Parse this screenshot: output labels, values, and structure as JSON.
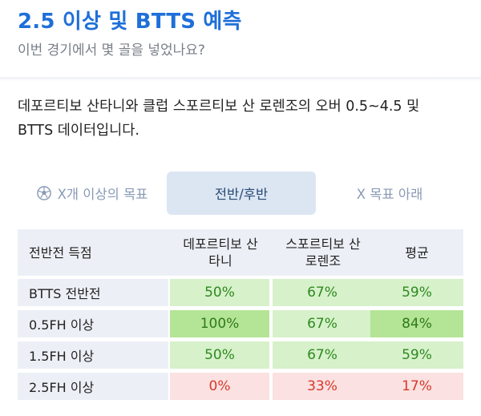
{
  "header": {
    "title": "2.5 이상 및 BTTS 예측",
    "subtitle": "이번 경기에서 몇 골을 넣었나요?"
  },
  "description": {
    "line1": "데포르티보 산타니와 클럽 스포르티보 산 로렌조의 오버 0.5~4.5 및",
    "line2": "BTTS 데이터입니다."
  },
  "tabs": [
    {
      "label": "X개 이상의 목표",
      "icon": "soccer-ball-icon",
      "active": false
    },
    {
      "label": "전반/후반",
      "active": true
    },
    {
      "label": "X 목표 아래",
      "active": false
    }
  ],
  "table": {
    "headers": [
      "전반전 득점",
      "데포르티보 산\n타니",
      "스포르티보 산\n로렌조",
      "평균"
    ],
    "rows": [
      {
        "label": "BTTS 전반전",
        "values": [
          "50%",
          "67%",
          "59%"
        ]
      },
      {
        "label": "0.5FH 이상",
        "values": [
          "100%",
          "67%",
          "84%"
        ]
      },
      {
        "label": "1.5FH 이상",
        "values": [
          "50%",
          "67%",
          "59%"
        ]
      },
      {
        "label": "2.5FH 이상",
        "values": [
          "0%",
          "33%",
          "17%"
        ]
      }
    ]
  },
  "colors": {
    "accent": "#1e6fd9",
    "green_light": "#d7f1cb",
    "green_strong": "#b4e496",
    "red_light": "#fbe1e1"
  }
}
